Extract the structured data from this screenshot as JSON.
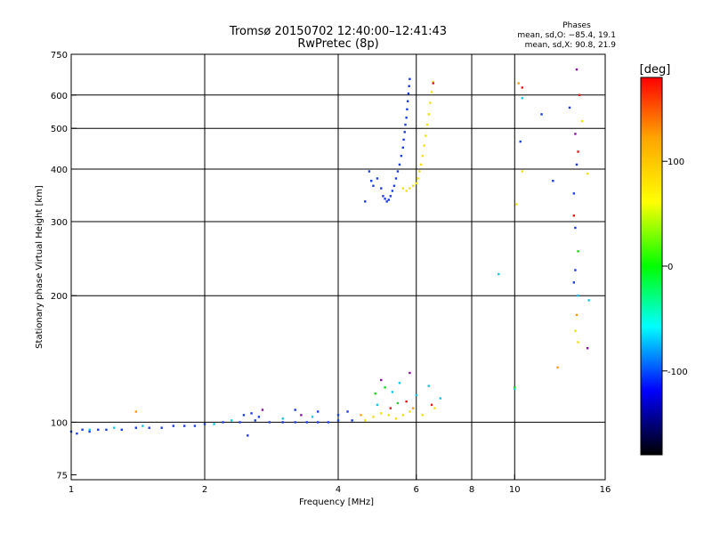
{
  "chart_data": {
    "type": "scatter",
    "title": "Tromsø 20150702 12:40:00–12:41:43",
    "subtitle": "RwPretec (8p)",
    "xlabel": "Frequency [MHz]",
    "ylabel": "Stationary phase Virtual Height [km]",
    "x_scale": "log",
    "y_scale": "log",
    "xlim": [
      1,
      16
    ],
    "ylim": [
      73,
      750
    ],
    "x_ticks": [
      1,
      2,
      4,
      6,
      8,
      10,
      16
    ],
    "y_ticks": [
      75,
      100,
      200,
      300,
      400,
      500,
      600,
      750
    ],
    "x_gridlines": [
      2,
      4,
      6,
      8,
      10
    ],
    "y_gridlines": [
      100,
      200,
      300,
      400,
      500,
      600
    ],
    "grid": true,
    "phase_stats": {
      "title": "Phases",
      "line_o": "mean, sd,O: −85.4, 19.1",
      "line_x": "mean, sd,X:  90.8, 21.9"
    },
    "colorbar": {
      "label": "[deg]",
      "range": [
        -180,
        180
      ],
      "ticks": [
        100,
        0,
        -100
      ],
      "colors": [
        "#ff0000",
        "#ffa500",
        "#ffff00",
        "#00ff00",
        "#00ffff",
        "#0000ff",
        "#000000"
      ]
    },
    "series": [
      {
        "mode": "O",
        "color": "#1a3ce0",
        "points": [
          [
            1.0,
            95
          ],
          [
            1.03,
            94
          ],
          [
            1.06,
            96
          ],
          [
            1.1,
            95
          ],
          [
            1.15,
            96
          ],
          [
            1.2,
            96
          ],
          [
            1.3,
            96
          ],
          [
            1.4,
            97
          ],
          [
            1.5,
            97
          ],
          [
            1.6,
            97
          ],
          [
            1.7,
            98
          ],
          [
            1.8,
            98
          ],
          [
            1.9,
            98
          ],
          [
            2.0,
            99
          ],
          [
            2.2,
            100
          ],
          [
            2.4,
            100
          ],
          [
            2.6,
            101
          ],
          [
            2.8,
            100
          ],
          [
            3.0,
            100
          ],
          [
            3.2,
            100
          ],
          [
            3.4,
            100
          ],
          [
            3.6,
            100
          ],
          [
            3.8,
            100
          ],
          [
            4.0,
            101
          ],
          [
            4.3,
            101
          ],
          [
            2.45,
            104
          ],
          [
            2.55,
            105
          ],
          [
            2.65,
            103
          ],
          [
            3.2,
            107
          ],
          [
            3.6,
            106
          ],
          [
            4.0,
            104
          ],
          [
            4.2,
            106
          ],
          [
            2.5,
            93
          ],
          [
            4.6,
            335
          ],
          [
            4.7,
            395
          ],
          [
            4.75,
            375
          ],
          [
            4.8,
            365
          ],
          [
            4.9,
            380
          ],
          [
            5.0,
            360
          ],
          [
            5.05,
            345
          ],
          [
            5.1,
            340
          ],
          [
            5.15,
            335
          ],
          [
            5.2,
            338
          ],
          [
            5.25,
            345
          ],
          [
            5.3,
            355
          ],
          [
            5.35,
            365
          ],
          [
            5.4,
            380
          ],
          [
            5.45,
            395
          ],
          [
            5.5,
            410
          ],
          [
            5.55,
            430
          ],
          [
            5.6,
            450
          ],
          [
            5.62,
            470
          ],
          [
            5.65,
            490
          ],
          [
            5.67,
            510
          ],
          [
            5.7,
            530
          ],
          [
            5.72,
            555
          ],
          [
            5.74,
            580
          ],
          [
            5.76,
            605
          ],
          [
            5.78,
            630
          ],
          [
            5.8,
            655
          ],
          [
            10.3,
            465
          ],
          [
            11.5,
            540
          ],
          [
            12.2,
            375
          ],
          [
            13.3,
            560
          ],
          [
            13.6,
            350
          ],
          [
            13.7,
            290
          ],
          [
            13.8,
            410
          ],
          [
            13.7,
            230
          ],
          [
            13.6,
            215
          ]
        ]
      },
      {
        "mode": "X",
        "color": "#f0e010",
        "points": [
          [
            4.6,
            101
          ],
          [
            4.8,
            103
          ],
          [
            5.0,
            105
          ],
          [
            5.2,
            104
          ],
          [
            5.4,
            102
          ],
          [
            5.6,
            104
          ],
          [
            5.8,
            106
          ],
          [
            6.2,
            104
          ],
          [
            6.6,
            108
          ],
          [
            5.6,
            360
          ],
          [
            5.7,
            355
          ],
          [
            5.8,
            360
          ],
          [
            5.9,
            365
          ],
          [
            6.0,
            370
          ],
          [
            6.05,
            380
          ],
          [
            6.1,
            395
          ],
          [
            6.15,
            410
          ],
          [
            6.2,
            430
          ],
          [
            6.25,
            455
          ],
          [
            6.3,
            480
          ],
          [
            6.35,
            510
          ],
          [
            6.4,
            540
          ],
          [
            6.45,
            575
          ],
          [
            6.5,
            610
          ],
          [
            6.55,
            645
          ],
          [
            10.1,
            330
          ],
          [
            10.4,
            395
          ],
          [
            13.9,
            155
          ],
          [
            13.7,
            165
          ],
          [
            14.2,
            520
          ],
          [
            14.6,
            390
          ]
        ]
      },
      {
        "mode": "mixed",
        "color": "#10c8e8",
        "points": [
          [
            1.1,
            96
          ],
          [
            1.25,
            97
          ],
          [
            1.45,
            98
          ],
          [
            2.1,
            99
          ],
          [
            2.3,
            101
          ],
          [
            3.0,
            102
          ],
          [
            3.5,
            103
          ],
          [
            4.9,
            110
          ],
          [
            5.3,
            118
          ],
          [
            5.5,
            124
          ],
          [
            6.0,
            116
          ],
          [
            6.4,
            122
          ],
          [
            6.8,
            114
          ],
          [
            9.2,
            225
          ],
          [
            10.0,
            120
          ],
          [
            10.4,
            590
          ],
          [
            13.9,
            200
          ],
          [
            14.7,
            195
          ]
        ]
      },
      {
        "mode": "mixed",
        "color": "#e01818",
        "points": [
          [
            5.25,
            108
          ],
          [
            5.7,
            112
          ],
          [
            6.5,
            110
          ],
          [
            6.55,
            640
          ],
          [
            13.6,
            310
          ],
          [
            13.9,
            440
          ],
          [
            14.0,
            600
          ],
          [
            10.4,
            625
          ]
        ]
      },
      {
        "mode": "mixed",
        "color": "#ff9a10",
        "points": [
          [
            1.4,
            106
          ],
          [
            4.5,
            104
          ],
          [
            5.9,
            108
          ],
          [
            12.5,
            135
          ],
          [
            13.8,
            180
          ],
          [
            10.2,
            640
          ]
        ]
      },
      {
        "mode": "mixed",
        "color": "#20d020",
        "points": [
          [
            4.85,
            117
          ],
          [
            5.1,
            121
          ],
          [
            5.45,
            111
          ],
          [
            10.0,
            121
          ],
          [
            13.9,
            255
          ]
        ]
      },
      {
        "mode": "mixed",
        "color": "#8a10a0",
        "points": [
          [
            2.7,
            107
          ],
          [
            3.3,
            104
          ],
          [
            5.0,
            126
          ],
          [
            5.8,
            131
          ],
          [
            13.8,
            690
          ],
          [
            14.6,
            150
          ],
          [
            13.7,
            485
          ]
        ]
      }
    ]
  }
}
